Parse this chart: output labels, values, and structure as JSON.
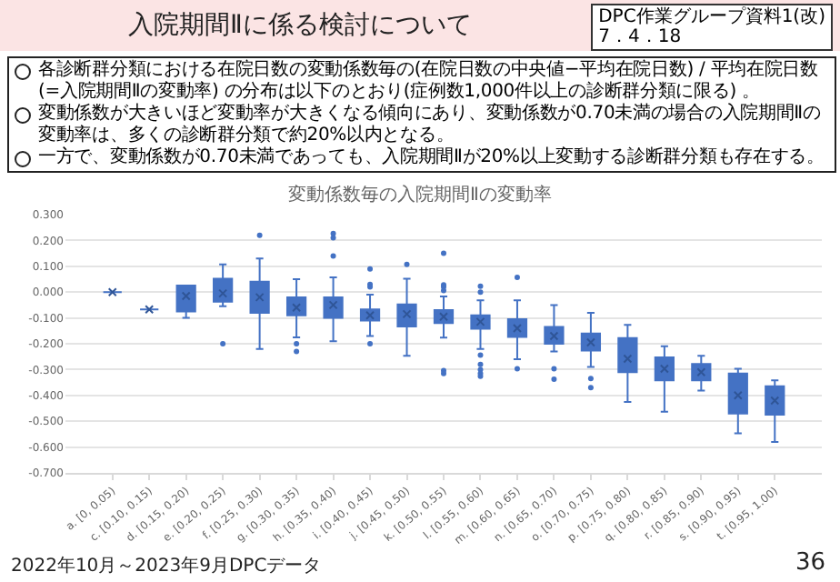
{
  "chart_data": {
    "type": "box",
    "title": "入院期間Ⅱに係る検討について",
    "subtitle": "変動係数毎の入院期間Ⅱの変動率",
    "annotations": [
      "DPC作業グループ資料1(改)\n7．4．18",
      "各診断群分類における在院日数の変動係数毎の(在院日数の中央値−平均在院日数) / 平均在院日数(=入院期間Ⅱの変動率) の分布は以下のとおり(症例数1,000件以上の診断群分類に限る) 。",
      "変動係数が大きいほど変動率が大きくなる傾向にあり、変動係数が0.70未満の場合の入院期間Ⅱの変動率は、多くの診断群分類で約20%以内となる。",
      "一方で、変動係数が0.70未満であっても、入院期間Ⅱが20%以上変動する診断群分類も存在する。",
      "2022年10月～2023年9月DPCデータ",
      "36"
    ],
    "categories": [
      "a. [0, 0.05)",
      "c. [0.10, 0.15)",
      "d. [0.15, 0.20)",
      "e. [0.20, 0.25)",
      "f. [0.25, 0.30)",
      "g. [0.30, 0.35)",
      "h. [0.35, 0.40)",
      "i. [0.40, 0.45)",
      "j. [0.45, 0.50)",
      "k. [0.50, 0.55)",
      "l. [0.55, 0.60)",
      "m. [0.60, 0.65)",
      "n. [0.65, 0.70)",
      "o. [0.70, 0.75)",
      "p. [0.75, 0.80)",
      "q. [0.80, 0.85)",
      "r. [0.85, 0.90)",
      "s. [0.90, 0.95)",
      "t. [0.95, 1.00)"
    ],
    "series": [
      {
        "color": "#4472c4",
        "boxes": [
          {
            "low": 0,
            "q1": 0,
            "median": 0,
            "q3": 0,
            "high": 0,
            "mean": 0
          },
          {
            "low": -0.067,
            "q1": -0.067,
            "median": -0.067,
            "q3": -0.067,
            "high": -0.067,
            "mean": -0.067
          },
          {
            "low": -0.1,
            "q1": -0.075,
            "median": -0.02,
            "q3": 0.025,
            "high": 0.025,
            "mean": -0.015
          },
          {
            "low": -0.055,
            "q1": -0.037,
            "median": 0,
            "q3": 0.052,
            "high": 0.107,
            "mean": -0.005,
            "outliers": [
              -0.2
            ]
          },
          {
            "low": -0.22,
            "q1": -0.08,
            "median": -0.033,
            "q3": 0.04,
            "high": 0.13,
            "mean": -0.02,
            "outliers": [
              0.22
            ]
          },
          {
            "low": -0.175,
            "q1": -0.09,
            "median": -0.055,
            "q3": -0.02,
            "high": 0.05,
            "mean": -0.06,
            "outliers": [
              -0.2,
              -0.23
            ]
          },
          {
            "low": -0.19,
            "q1": -0.1,
            "median": -0.045,
            "q3": -0.02,
            "high": 0.057,
            "mean": -0.05,
            "outliers": [
              0.227,
              0.21,
              0.14
            ]
          },
          {
            "low": -0.17,
            "q1": -0.11,
            "median": -0.09,
            "q3": -0.067,
            "high": -0.01,
            "mean": -0.09,
            "outliers": [
              0.09,
              0.03,
              0.02,
              -0.2
            ]
          },
          {
            "low": -0.247,
            "q1": -0.133,
            "median": -0.085,
            "q3": -0.048,
            "high": 0.052,
            "mean": -0.085,
            "outliers": [
              0.107
            ]
          },
          {
            "low": -0.176,
            "q1": -0.12,
            "median": -0.09,
            "q3": -0.07,
            "high": -0.017,
            "mean": -0.095,
            "outliers": [
              0.15,
              0.028,
              0.02,
              0.006,
              -0.304,
              -0.315
            ]
          },
          {
            "low": -0.22,
            "q1": -0.142,
            "median": -0.113,
            "q3": -0.09,
            "high": -0.032,
            "mean": -0.115,
            "outliers": [
              0.023,
              0.0,
              -0.244,
              -0.28,
              -0.3,
              -0.315,
              -0.326
            ]
          },
          {
            "low": -0.26,
            "q1": -0.174,
            "median": -0.138,
            "q3": -0.105,
            "high": -0.032,
            "mean": -0.14,
            "outliers": [
              0.057,
              -0.297
            ]
          },
          {
            "low": -0.23,
            "q1": -0.2,
            "median": -0.167,
            "q3": -0.135,
            "high": -0.05,
            "mean": -0.17,
            "outliers": [
              -0.297,
              -0.337
            ]
          },
          {
            "low": -0.29,
            "q1": -0.226,
            "median": -0.193,
            "q3": -0.16,
            "high": -0.08,
            "mean": -0.195,
            "outliers": [
              -0.335,
              -0.37
            ]
          },
          {
            "low": -0.425,
            "q1": -0.31,
            "median": -0.27,
            "q3": -0.178,
            "high": -0.127,
            "mean": -0.258
          },
          {
            "low": -0.463,
            "q1": -0.342,
            "median": -0.297,
            "q3": -0.253,
            "high": -0.21,
            "mean": -0.297
          },
          {
            "low": -0.381,
            "q1": -0.342,
            "median": -0.308,
            "q3": -0.278,
            "high": -0.247,
            "mean": -0.31
          },
          {
            "low": -0.547,
            "q1": -0.47,
            "median": -0.408,
            "q3": -0.315,
            "high": -0.297,
            "mean": -0.4
          },
          {
            "low": -0.58,
            "q1": -0.475,
            "median": -0.419,
            "q3": -0.365,
            "high": -0.342,
            "mean": -0.42
          }
        ]
      }
    ],
    "ylim": [
      -0.7,
      0.3
    ],
    "yticks": [
      {
        "value": 0.3,
        "label": "0.300"
      },
      {
        "value": 0.2,
        "label": "0.200"
      },
      {
        "value": 0.1,
        "label": "0.100"
      },
      {
        "value": 0,
        "label": "0.000"
      },
      {
        "value": -0.1,
        "label": "-0.100"
      },
      {
        "value": -0.2,
        "label": "-0.200"
      },
      {
        "value": -0.3,
        "label": "-0.300"
      },
      {
        "value": -0.4,
        "label": "-0.400"
      },
      {
        "value": -0.5,
        "label": "-0.500"
      },
      {
        "value": -0.6,
        "label": "-0.600"
      },
      {
        "value": -0.7,
        "label": "-0.700"
      }
    ],
    "grid": "y",
    "marker": "circle"
  }
}
